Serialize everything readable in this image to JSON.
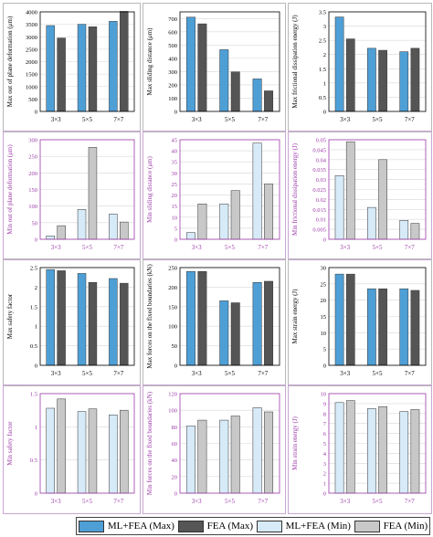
{
  "legend": [
    {
      "label": "ML+FEA (Max)",
      "color": "#4e9fd6"
    },
    {
      "label": "FEA (Max)",
      "color": "#555555"
    },
    {
      "label": "ML+FEA (Min)",
      "color": "#d6eaf8"
    },
    {
      "label": "FEA (Min)",
      "color": "#c8c8c8"
    }
  ],
  "colors": {
    "ml_max": "#4e9fd6",
    "fea_max": "#555555",
    "ml_min": "#d6eaf8",
    "fea_min": "#c8c8c8",
    "axis_max": "#000000",
    "axis_min": "#9b3aa8"
  },
  "chart_data": [
    {
      "type": "bar",
      "group": "max",
      "ylabel": "Max out of plane deformation (μm)",
      "categories": [
        "3×3",
        "5×5",
        "7×7"
      ],
      "ylim": [
        0,
        4000
      ],
      "yticks": [
        0,
        500,
        1000,
        1500,
        2000,
        2500,
        3000,
        3500,
        4000
      ],
      "series": [
        {
          "name": "ML+FEA (Max)",
          "values": [
            3450,
            3500,
            3620
          ]
        },
        {
          "name": "FEA (Max)",
          "values": [
            2950,
            3400,
            4020
          ]
        }
      ]
    },
    {
      "type": "bar",
      "group": "max",
      "ylabel": "Max sliding distance (μm)",
      "categories": [
        "3×3",
        "5×5",
        "7×7"
      ],
      "ylim": [
        0,
        750
      ],
      "yticks": [
        0,
        100,
        200,
        300,
        400,
        500,
        600,
        700
      ],
      "series": [
        {
          "name": "ML+FEA (Max)",
          "values": [
            710,
            465,
            245
          ]
        },
        {
          "name": "FEA (Max)",
          "values": [
            660,
            298,
            155
          ]
        }
      ]
    },
    {
      "type": "bar",
      "group": "max",
      "ylabel": "Max frictional dissipation energy (J)",
      "categories": [
        "3×3",
        "5×5",
        "7×7"
      ],
      "ylim": [
        0,
        3.5
      ],
      "yticks": [
        0,
        0.5,
        1,
        1.5,
        2,
        2.5,
        3,
        3.5
      ],
      "series": [
        {
          "name": "ML+FEA (Max)",
          "values": [
            3.32,
            2.22,
            2.1
          ]
        },
        {
          "name": "FEA (Max)",
          "values": [
            2.55,
            2.15,
            2.22
          ]
        }
      ]
    },
    {
      "type": "bar",
      "group": "min",
      "ylabel": "Min out of plane deformation (μm)",
      "categories": [
        "3×3",
        "5×5",
        "7×7"
      ],
      "ylim": [
        0,
        300
      ],
      "yticks": [
        0,
        50,
        100,
        150,
        200,
        250,
        300
      ],
      "series": [
        {
          "name": "ML+FEA (Min)",
          "values": [
            10,
            90,
            76
          ]
        },
        {
          "name": "FEA (Min)",
          "values": [
            41,
            277,
            52
          ]
        }
      ]
    },
    {
      "type": "bar",
      "group": "min",
      "ylabel": "Min sliding distance (μm)",
      "categories": [
        "3×3",
        "5×5",
        "7×7"
      ],
      "ylim": [
        0,
        45
      ],
      "yticks": [
        0,
        5,
        10,
        15,
        20,
        25,
        30,
        35,
        40,
        45
      ],
      "series": [
        {
          "name": "ML+FEA (Min)",
          "values": [
            3,
            16,
            43.5
          ]
        },
        {
          "name": "FEA (Min)",
          "values": [
            16,
            22,
            25
          ]
        }
      ]
    },
    {
      "type": "bar",
      "group": "min",
      "ylabel": "Min frictional dissipation energy (J)",
      "categories": [
        "3×3",
        "5×5",
        "7×7"
      ],
      "ylim": [
        0,
        0.05
      ],
      "yticks": [
        0,
        0.005,
        0.01,
        0.015,
        0.02,
        0.025,
        0.03,
        0.035,
        0.04,
        0.045,
        0.05
      ],
      "series": [
        {
          "name": "ML+FEA (Min)",
          "values": [
            0.032,
            0.016,
            0.0095
          ]
        },
        {
          "name": "FEA (Min)",
          "values": [
            0.049,
            0.04,
            0.008
          ]
        }
      ]
    },
    {
      "type": "bar",
      "group": "max",
      "ylabel": "Max safety factor",
      "categories": [
        "3×3",
        "5×5",
        "7×7"
      ],
      "ylim": [
        0,
        2.5
      ],
      "yticks": [
        0,
        0.5,
        1,
        1.5,
        2,
        2.5
      ],
      "series": [
        {
          "name": "ML+FEA (Max)",
          "values": [
            2.45,
            2.35,
            2.22
          ]
        },
        {
          "name": "FEA (Max)",
          "values": [
            2.42,
            2.12,
            2.1
          ]
        }
      ]
    },
    {
      "type": "bar",
      "group": "max",
      "ylabel": "Max forces on the fixed boundaries (kN)",
      "categories": [
        "3×3",
        "5×5",
        "7×7"
      ],
      "ylim": [
        0,
        250
      ],
      "yticks": [
        0,
        50,
        100,
        150,
        200,
        250
      ],
      "series": [
        {
          "name": "ML+FEA (Max)",
          "values": [
            240,
            165,
            212
          ]
        },
        {
          "name": "FEA (Max)",
          "values": [
            240,
            160,
            215
          ]
        }
      ]
    },
    {
      "type": "bar",
      "group": "max",
      "ylabel": "Max strain energy (J)",
      "categories": [
        "3×3",
        "5×5",
        "7×7"
      ],
      "ylim": [
        0,
        30
      ],
      "yticks": [
        0,
        5,
        10,
        15,
        20,
        25,
        30
      ],
      "series": [
        {
          "name": "ML+FEA (Max)",
          "values": [
            28,
            23.5,
            23.5
          ]
        },
        {
          "name": "FEA (Max)",
          "values": [
            28,
            23.5,
            23
          ]
        }
      ]
    },
    {
      "type": "bar",
      "group": "min",
      "ylabel": "Min safety factor",
      "categories": [
        "3×3",
        "5×5",
        "7×7"
      ],
      "ylim": [
        0,
        1.5
      ],
      "yticks": [
        0,
        0.5,
        1,
        1.5
      ],
      "series": [
        {
          "name": "ML+FEA (Min)",
          "values": [
            1.28,
            1.23,
            1.18
          ]
        },
        {
          "name": "FEA (Min)",
          "values": [
            1.42,
            1.27,
            1.25
          ]
        }
      ]
    },
    {
      "type": "bar",
      "group": "min",
      "ylabel": "Min forces on the fixed boundaries (kN)",
      "categories": [
        "3×3",
        "5×5",
        "7×7"
      ],
      "ylim": [
        0,
        120
      ],
      "yticks": [
        0,
        20,
        40,
        60,
        80,
        100,
        120
      ],
      "series": [
        {
          "name": "ML+FEA (Min)",
          "values": [
            81,
            88,
            103
          ]
        },
        {
          "name": "FEA (Min)",
          "values": [
            88,
            93,
            98
          ]
        }
      ]
    },
    {
      "type": "bar",
      "group": "min",
      "ylabel": "Min strain energy (J)",
      "categories": [
        "3×3",
        "5×5",
        "7×7"
      ],
      "ylim": [
        0,
        10
      ],
      "yticks": [
        0,
        1,
        2,
        3,
        4,
        5,
        6,
        7,
        8,
        9,
        10
      ],
      "series": [
        {
          "name": "ML+FEA (Min)",
          "values": [
            9.1,
            8.5,
            8.2
          ]
        },
        {
          "name": "FEA (Min)",
          "values": [
            9.3,
            8.7,
            8.4
          ]
        }
      ]
    }
  ]
}
